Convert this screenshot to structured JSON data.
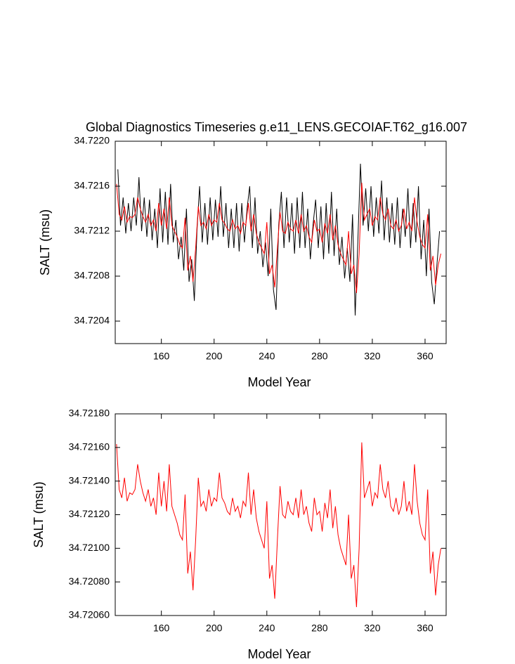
{
  "chart_data": [
    {
      "type": "line",
      "title": "Global Diagnostics Timeseries g.e11_LENS.GECOIAF.T62_g16.007",
      "x_label": "Model Year",
      "y_label": "SALT (msu)",
      "xlim": [
        125,
        376
      ],
      "ylim": [
        34.7202,
        34.722
      ],
      "xticks": [
        160,
        200,
        240,
        280,
        320,
        360
      ],
      "yticks": [
        34.7204,
        34.7208,
        34.7212,
        34.7216,
        {
          "value": 34.722,
          "label": "34.7220"
        }
      ],
      "series": [
        {
          "color": "#000000",
          "x": [
            127,
            129,
            131,
            133,
            135,
            137,
            139,
            141,
            143,
            145,
            147,
            149,
            151,
            153,
            155,
            157,
            159,
            161,
            163,
            165,
            167,
            169,
            171,
            173,
            175,
            177,
            179,
            181,
            183,
            185,
            187,
            189,
            191,
            193,
            195,
            197,
            199,
            201,
            203,
            205,
            207,
            209,
            211,
            213,
            215,
            217,
            219,
            221,
            223,
            225,
            227,
            229,
            231,
            233,
            235,
            237,
            239,
            241,
            243,
            245,
            247,
            249,
            251,
            253,
            255,
            257,
            259,
            261,
            263,
            265,
            267,
            269,
            271,
            273,
            275,
            277,
            279,
            281,
            283,
            285,
            287,
            289,
            291,
            293,
            295,
            297,
            299,
            301,
            303,
            305,
            307,
            309,
            311,
            313,
            315,
            317,
            319,
            321,
            323,
            325,
            327,
            329,
            331,
            333,
            335,
            337,
            339,
            341,
            343,
            345,
            347,
            349,
            351,
            353,
            355,
            357,
            359,
            361,
            363,
            365,
            367,
            369,
            371
          ],
          "values": [
            34.72175,
            34.72125,
            34.7215,
            34.72118,
            34.72145,
            34.7212,
            34.7215,
            34.72125,
            34.72168,
            34.7212,
            34.7215,
            34.72115,
            34.72148,
            34.72112,
            34.7214,
            34.72105,
            34.72158,
            34.7211,
            34.72155,
            34.72108,
            34.72162,
            34.7211,
            34.7213,
            34.72095,
            34.72115,
            34.72085,
            34.7214,
            34.72075,
            34.72095,
            34.72058,
            34.7212,
            34.7216,
            34.7211,
            34.72145,
            34.72108,
            34.7215,
            34.72112,
            34.72148,
            34.72115,
            34.7216,
            34.72115,
            34.72145,
            34.72105,
            34.7214,
            34.72105,
            34.72145,
            34.72102,
            34.72145,
            34.7211,
            34.7214,
            34.7216,
            34.72105,
            34.7215,
            34.721,
            34.7212,
            34.72088,
            34.7211,
            34.7208,
            34.7214,
            34.72068,
            34.7205,
            34.72125,
            34.72155,
            34.72105,
            34.7215,
            34.7211,
            34.72145,
            34.721,
            34.7215,
            34.72105,
            34.72155,
            34.72105,
            34.7214,
            34.72095,
            34.72125,
            34.72148,
            34.72105,
            34.72142,
            34.72095,
            34.72145,
            34.721,
            34.72155,
            34.72098,
            34.7214,
            34.7209,
            34.72115,
            34.72078,
            34.72105,
            34.72075,
            34.72135,
            34.72045,
            34.7211,
            34.7218,
            34.72125,
            34.72158,
            34.7212,
            34.7216,
            34.72115,
            34.7215,
            34.72118,
            34.72165,
            34.72112,
            34.7215,
            34.7211,
            34.72145,
            34.72108,
            34.7215,
            34.72105,
            34.7214,
            34.72115,
            34.72158,
            34.72105,
            34.72145,
            34.7211,
            34.7216,
            34.72095,
            34.7213,
            34.7208,
            34.7214,
            34.72075,
            34.72055,
            34.7209,
            34.7212
          ]
        },
        {
          "color": "#ff0000",
          "x": [
            126,
            128,
            130,
            132,
            134,
            136,
            138,
            140,
            142,
            144,
            146,
            148,
            150,
            152,
            154,
            156,
            158,
            160,
            162,
            164,
            166,
            168,
            170,
            172,
            174,
            176,
            178,
            180,
            182,
            184,
            186,
            188,
            190,
            192,
            194,
            196,
            198,
            200,
            202,
            204,
            206,
            208,
            210,
            212,
            214,
            216,
            218,
            220,
            222,
            224,
            226,
            228,
            230,
            232,
            234,
            236,
            238,
            240,
            242,
            244,
            246,
            248,
            250,
            252,
            254,
            256,
            258,
            260,
            262,
            264,
            266,
            268,
            270,
            272,
            274,
            276,
            278,
            280,
            282,
            284,
            286,
            288,
            290,
            292,
            294,
            296,
            298,
            300,
            302,
            304,
            306,
            308,
            310,
            312,
            314,
            316,
            318,
            320,
            322,
            324,
            326,
            328,
            330,
            332,
            334,
            336,
            338,
            340,
            342,
            344,
            346,
            348,
            350,
            352,
            354,
            356,
            358,
            360,
            362,
            364,
            366,
            368,
            370,
            372
          ],
          "values": [
            34.72162,
            34.72135,
            34.7213,
            34.72142,
            34.72128,
            34.72133,
            34.72132,
            34.72135,
            34.7215,
            34.7214,
            34.72133,
            34.72128,
            34.72135,
            34.72125,
            34.7213,
            34.7212,
            34.72145,
            34.72125,
            34.7214,
            34.72122,
            34.7215,
            34.72125,
            34.7212,
            34.72115,
            34.72108,
            34.72105,
            34.72132,
            34.72085,
            34.72098,
            34.72075,
            34.72105,
            34.72142,
            34.72125,
            34.72128,
            34.72122,
            34.72135,
            34.72125,
            34.7213,
            34.72128,
            34.72145,
            34.7213,
            34.72127,
            34.72122,
            34.7212,
            34.7213,
            34.72122,
            34.72125,
            34.72118,
            34.72128,
            34.72125,
            34.72145,
            34.7212,
            34.72135,
            34.72118,
            34.7211,
            34.72105,
            34.721,
            34.72128,
            34.72082,
            34.7209,
            34.7207,
            34.72105,
            34.72137,
            34.7212,
            34.72118,
            34.72128,
            34.72122,
            34.7212,
            34.7213,
            34.72118,
            34.72135,
            34.7212,
            34.72125,
            34.72115,
            34.7211,
            34.7213,
            34.7212,
            34.72122,
            34.7211,
            34.72127,
            34.72118,
            34.72135,
            34.72112,
            34.72125,
            34.72108,
            34.721,
            34.72095,
            34.7209,
            34.7212,
            34.72082,
            34.7209,
            34.72065,
            34.721,
            34.72163,
            34.7213,
            34.72135,
            34.7214,
            34.72125,
            34.72133,
            34.7213,
            34.7215,
            34.72135,
            34.7213,
            34.7214,
            34.72125,
            34.72122,
            34.7213,
            34.7212,
            34.72125,
            34.7214,
            34.72122,
            34.72128,
            34.7212,
            34.7215,
            34.72128,
            34.72115,
            34.72108,
            34.72105,
            34.72135,
            34.72085,
            34.72098,
            34.72072,
            34.7209,
            34.721
          ]
        }
      ]
    },
    {
      "type": "line",
      "x_label": "Model Year",
      "y_label": "SALT (msu)",
      "xlim": [
        125,
        376
      ],
      "ylim": [
        34.7206,
        34.7218
      ],
      "xticks": [
        160,
        200,
        240,
        280,
        320,
        360
      ],
      "yticks": [
        {
          "value": 34.7206,
          "label": "34.72060"
        },
        {
          "value": 34.7208,
          "label": "34.72080"
        },
        {
          "value": 34.721,
          "label": "34.72100"
        },
        {
          "value": 34.7212,
          "label": "34.72120"
        },
        {
          "value": 34.7214,
          "label": "34.72140"
        },
        {
          "value": 34.7216,
          "label": "34.72160"
        },
        {
          "value": 34.7218,
          "label": "34.72180"
        }
      ],
      "series": [
        {
          "color": "#ff0000",
          "x": [
            126,
            128,
            130,
            132,
            134,
            136,
            138,
            140,
            142,
            144,
            146,
            148,
            150,
            152,
            154,
            156,
            158,
            160,
            162,
            164,
            166,
            168,
            170,
            172,
            174,
            176,
            178,
            180,
            182,
            184,
            186,
            188,
            190,
            192,
            194,
            196,
            198,
            200,
            202,
            204,
            206,
            208,
            210,
            212,
            214,
            216,
            218,
            220,
            222,
            224,
            226,
            228,
            230,
            232,
            234,
            236,
            238,
            240,
            242,
            244,
            246,
            248,
            250,
            252,
            254,
            256,
            258,
            260,
            262,
            264,
            266,
            268,
            270,
            272,
            274,
            276,
            278,
            280,
            282,
            284,
            286,
            288,
            290,
            292,
            294,
            296,
            298,
            300,
            302,
            304,
            306,
            308,
            310,
            312,
            314,
            316,
            318,
            320,
            322,
            324,
            326,
            328,
            330,
            332,
            334,
            336,
            338,
            340,
            342,
            344,
            346,
            348,
            350,
            352,
            354,
            356,
            358,
            360,
            362,
            364,
            366,
            368,
            370,
            372
          ],
          "values": [
            34.72162,
            34.72135,
            34.7213,
            34.72142,
            34.72128,
            34.72133,
            34.72132,
            34.72135,
            34.7215,
            34.7214,
            34.72133,
            34.72128,
            34.72135,
            34.72125,
            34.7213,
            34.7212,
            34.72145,
            34.72125,
            34.7214,
            34.72122,
            34.7215,
            34.72125,
            34.7212,
            34.72115,
            34.72108,
            34.72105,
            34.72132,
            34.72085,
            34.72098,
            34.72075,
            34.72105,
            34.72142,
            34.72125,
            34.72128,
            34.72122,
            34.72135,
            34.72125,
            34.7213,
            34.72128,
            34.72145,
            34.7213,
            34.72127,
            34.72122,
            34.7212,
            34.7213,
            34.72122,
            34.72125,
            34.72118,
            34.72128,
            34.72125,
            34.72145,
            34.7212,
            34.72135,
            34.72118,
            34.7211,
            34.72105,
            34.721,
            34.72128,
            34.72082,
            34.7209,
            34.7207,
            34.72105,
            34.72137,
            34.7212,
            34.72118,
            34.72128,
            34.72122,
            34.7212,
            34.7213,
            34.72118,
            34.72135,
            34.7212,
            34.72125,
            34.72115,
            34.7211,
            34.7213,
            34.7212,
            34.72122,
            34.7211,
            34.72127,
            34.72118,
            34.72135,
            34.72112,
            34.72125,
            34.72108,
            34.721,
            34.72095,
            34.7209,
            34.7212,
            34.72082,
            34.7209,
            34.72065,
            34.721,
            34.72163,
            34.7213,
            34.72135,
            34.7214,
            34.72125,
            34.72133,
            34.7213,
            34.7215,
            34.72135,
            34.7213,
            34.7214,
            34.72125,
            34.72122,
            34.7213,
            34.7212,
            34.72125,
            34.7214,
            34.72122,
            34.72128,
            34.7212,
            34.7215,
            34.72128,
            34.72115,
            34.72108,
            34.72105,
            34.72135,
            34.72085,
            34.72098,
            34.72072,
            34.7209,
            34.721
          ]
        }
      ]
    }
  ]
}
